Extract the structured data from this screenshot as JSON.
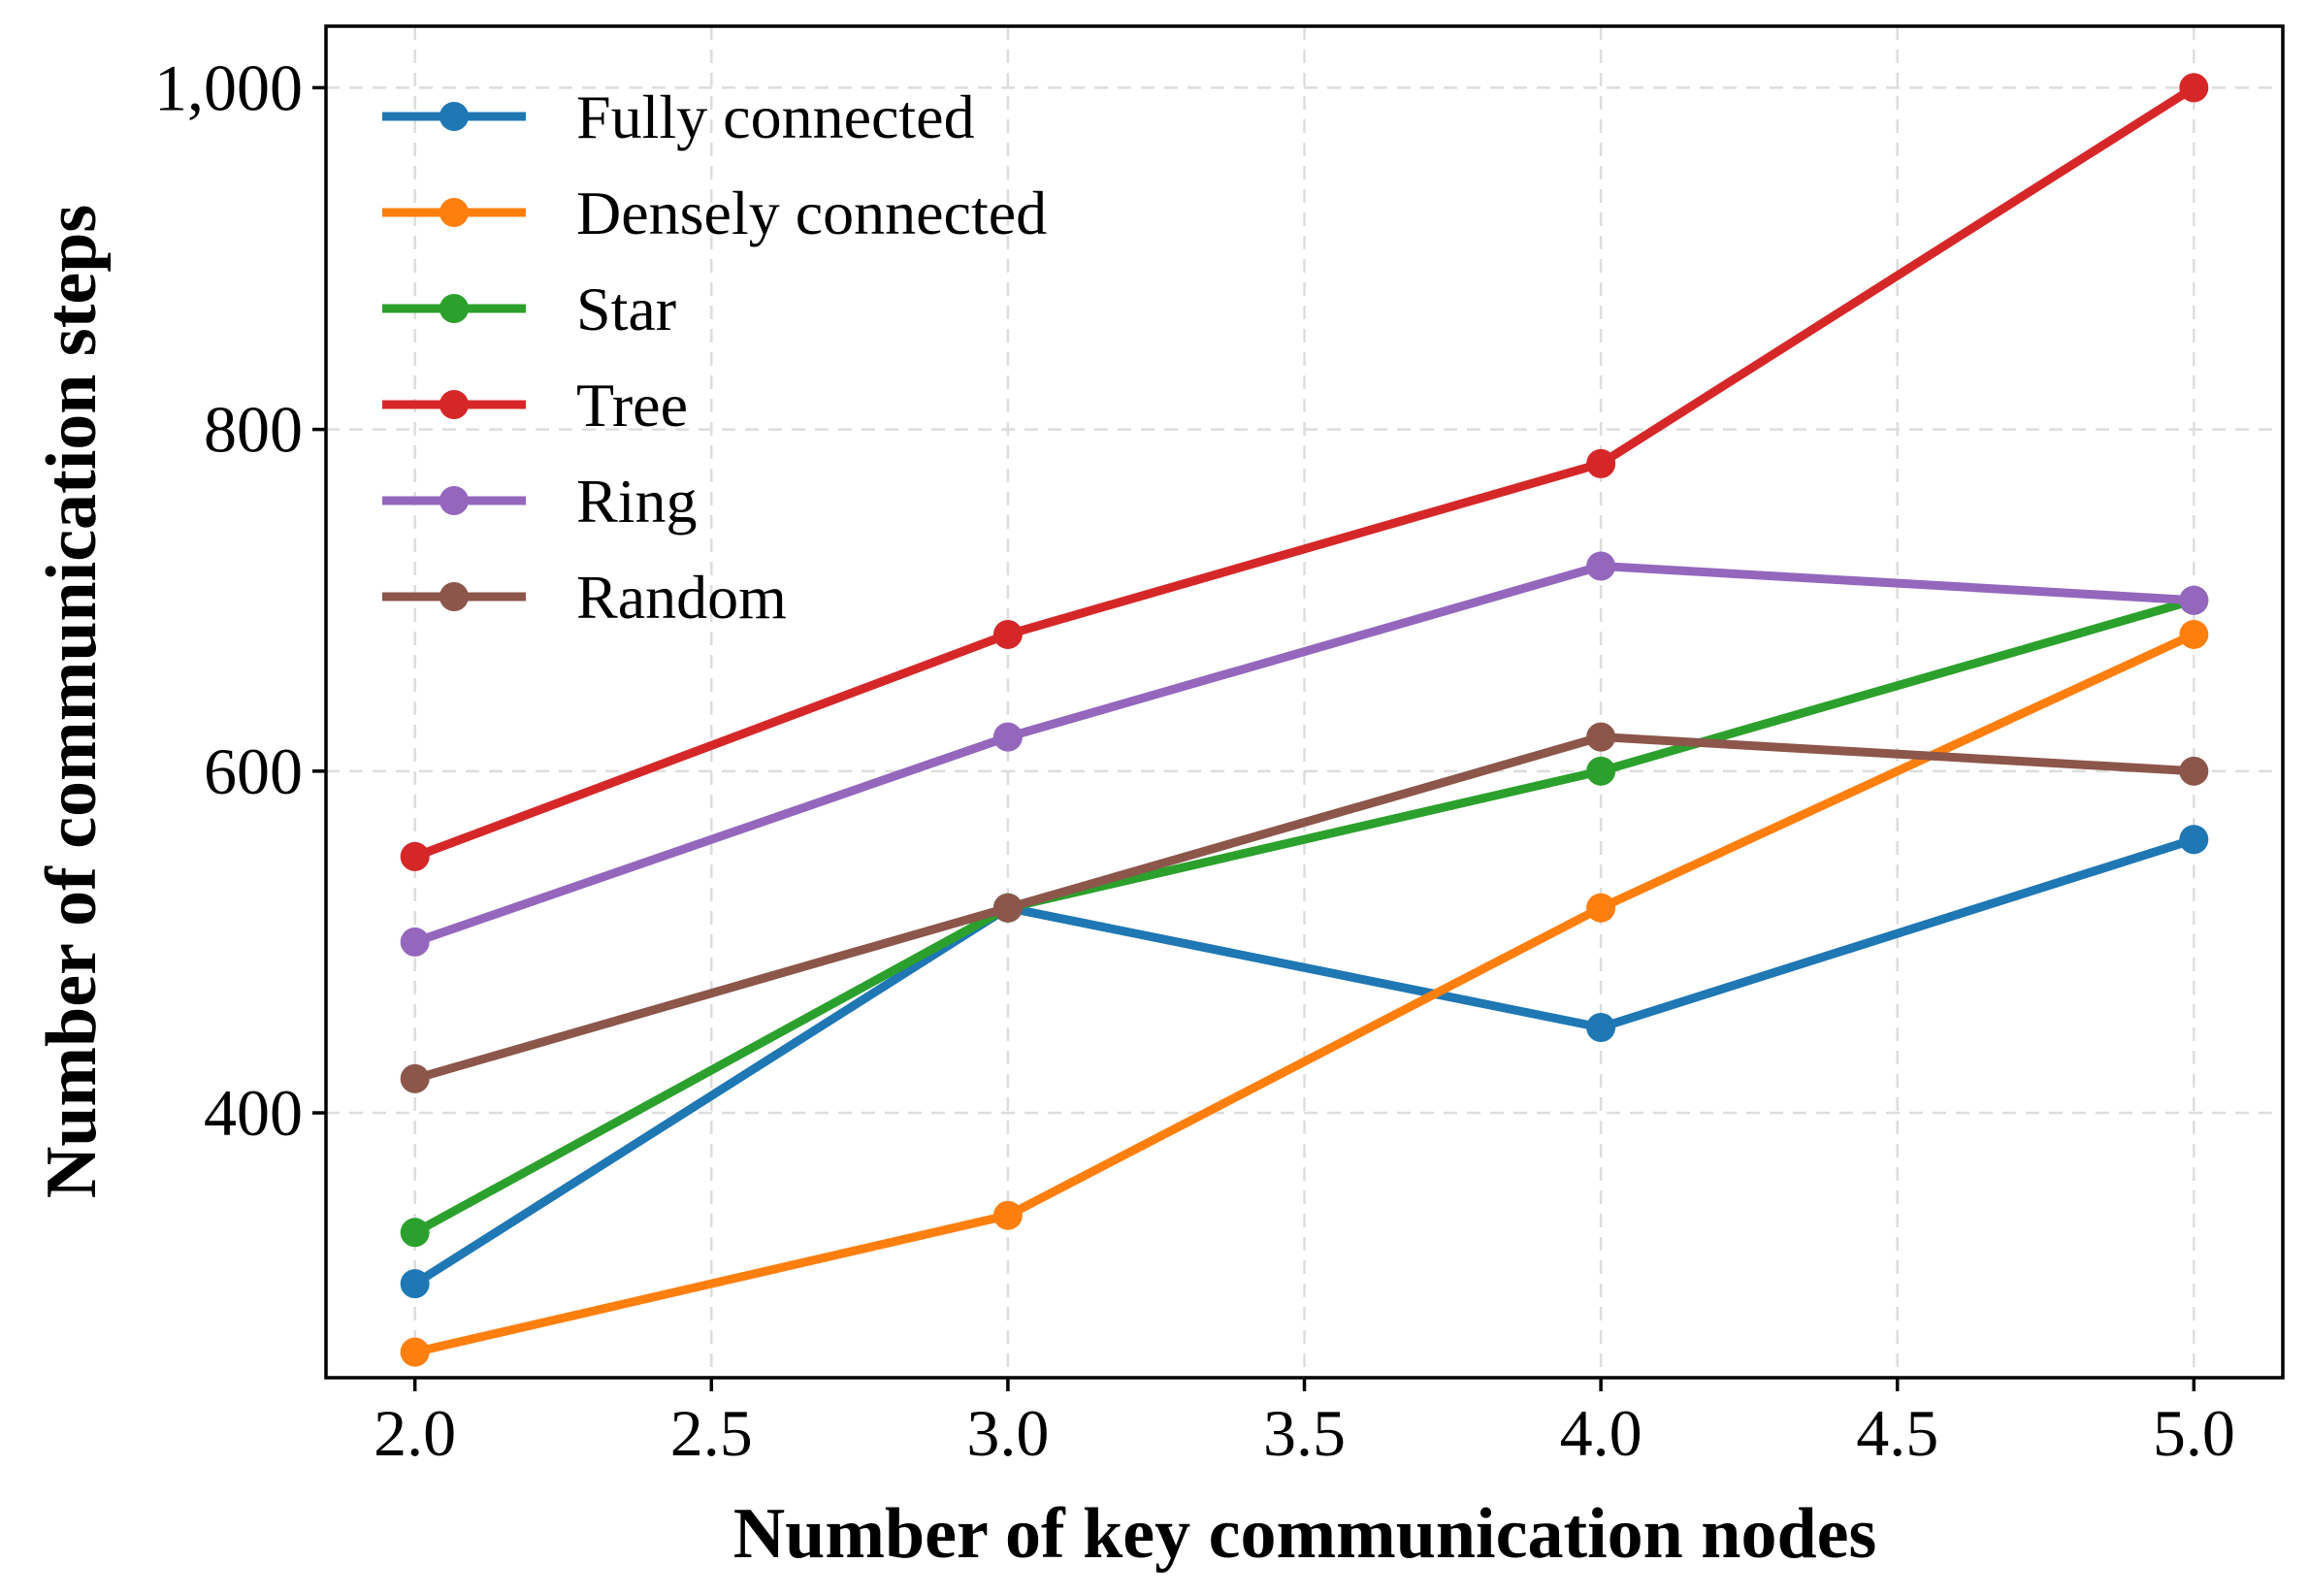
{
  "chart_data": {
    "type": "line",
    "title": "",
    "xlabel": "Number of key communication nodes",
    "ylabel": "Number of communication steps",
    "x": [
      2.0,
      3.0,
      4.0,
      5.0
    ],
    "xlim": [
      1.85,
      5.15
    ],
    "ylim": [
      245,
      1036
    ],
    "xticks": [
      2.0,
      2.5,
      3.0,
      3.5,
      4.0,
      4.5,
      5.0
    ],
    "xtick_labels": [
      "2.0",
      "2.5",
      "3.0",
      "3.5",
      "4.0",
      "4.5",
      "5.0"
    ],
    "yticks": [
      400,
      600,
      800,
      1000
    ],
    "ytick_labels": [
      "400",
      "600",
      "800",
      "1,000"
    ],
    "grid": true,
    "legend_position": "top-left",
    "series": [
      {
        "name": "Fully connected",
        "color": "#1f77b4",
        "values": [
          300,
          520,
          450,
          560
        ]
      },
      {
        "name": "Densely connected",
        "color": "#ff7f0e",
        "values": [
          260,
          340,
          520,
          680
        ]
      },
      {
        "name": "Star",
        "color": "#2ca02c",
        "values": [
          330,
          520,
          600,
          700
        ]
      },
      {
        "name": "Tree",
        "color": "#d62728",
        "values": [
          550,
          680,
          780,
          1000
        ]
      },
      {
        "name": "Ring",
        "color": "#9467bd",
        "values": [
          500,
          620,
          720,
          700
        ]
      },
      {
        "name": "Random",
        "color": "#8c564b",
        "values": [
          420,
          520,
          620,
          600
        ]
      }
    ]
  }
}
